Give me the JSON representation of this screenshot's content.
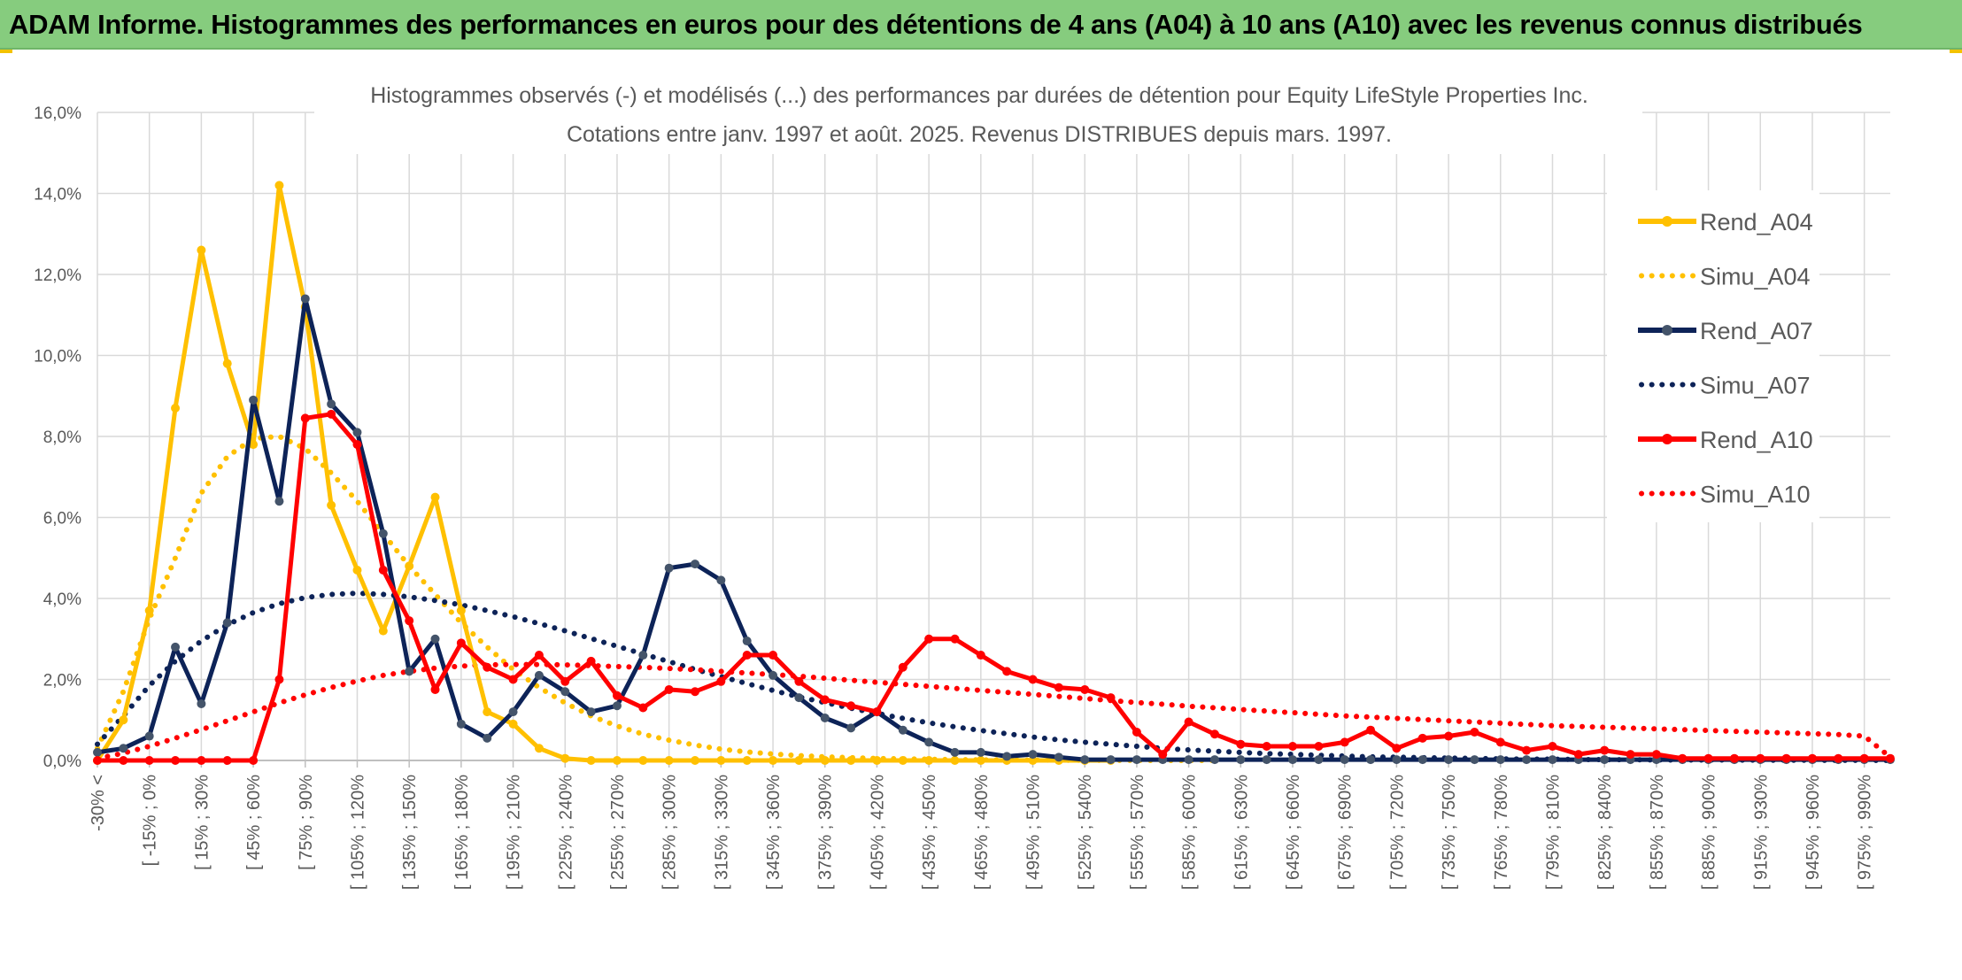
{
  "header": {
    "title": "ADAM Informe. Histogrammes des performances en euros pour des détentions de 4 ans (A04) à 10 ans (A10) avec les revenus connus distribués"
  },
  "colors": {
    "header_bg": "#86cc7e",
    "a04": "#ffc000",
    "a07": "#0d2358",
    "a10": "#ff0000",
    "grid": "#d9d9d9"
  },
  "chart_data": {
    "type": "line",
    "title": "Histogrammes observés (-) et modélisés (...) des performances par durées de détention pour Equity LifeStyle Properties Inc.",
    "subtitle": "Cotations entre janv. 1997 et août. 2025. Revenus DISTRIBUES depuis mars. 1997.",
    "ylim": [
      0,
      16
    ],
    "yticks": [
      "0,0%",
      "2,0%",
      "4,0%",
      "6,0%",
      "8,0%",
      "10,0%",
      "12,0%",
      "14,0%",
      "16,0%"
    ],
    "x_labels": [
      "-30% <",
      "[ -15% ; 0%",
      "[ 15% ; 30%",
      "[ 45% ; 60%",
      "[ 75% ; 90%",
      "[ 105% ; 120%",
      "[ 135% ; 150%",
      "[ 165% ; 180%",
      "[ 195% ; 210%",
      "[ 225% ; 240%",
      "[ 255% ; 270%",
      "[ 285% ; 300%",
      "[ 315% ; 330%",
      "[ 345% ; 360%",
      "[ 375% ; 390%",
      "[ 405% ; 420%",
      "[ 435% ; 450%",
      "[ 465% ; 480%",
      "[ 495% ; 510%",
      "[ 525% ; 540%",
      "[ 555% ; 570%",
      "[ 585% ; 600%",
      "[ 615% ; 630%",
      "[ 645% ; 660%",
      "[ 675% ; 690%",
      "[ 705% ; 720%",
      "[ 735% ; 750%",
      "[ 765% ; 780%",
      "[ 795% ; 810%",
      "[ 825% ; 840%",
      "[ 855% ; 870%",
      "[ 885% ; 900%",
      "[ 915% ; 930%",
      "[ 945% ; 960%",
      "[ 975% ; 990%"
    ],
    "n_points": 70,
    "legend_position": "right",
    "series": [
      {
        "name": "Rend_A04",
        "style": "solid",
        "color": "#ffc000",
        "values": [
          0,
          1.0,
          3.7,
          8.7,
          12.6,
          9.8,
          7.8,
          14.2,
          11.2,
          6.3,
          4.7,
          3.2,
          4.8,
          6.5,
          3.7,
          1.2,
          0.9,
          0.3,
          0.05,
          0,
          0,
          0,
          0,
          0,
          0,
          0,
          0,
          0,
          0,
          0,
          0,
          0,
          0,
          0,
          0,
          0,
          0,
          0,
          0,
          0
        ]
      },
      {
        "name": "Simu_A04",
        "style": "dotted",
        "color": "#ffc000",
        "values": [
          0.3,
          1.7,
          3.5,
          5.0,
          6.6,
          7.5,
          7.95,
          8.0,
          7.7,
          7.1,
          6.4,
          5.6,
          4.8,
          4.1,
          3.4,
          2.8,
          2.25,
          1.8,
          1.42,
          1.1,
          0.85,
          0.65,
          0.5,
          0.38,
          0.28,
          0.21,
          0.16,
          0.12,
          0.09,
          0.07,
          0.05,
          0.04,
          0.03,
          0.02,
          0.015,
          0.01,
          0.008,
          0.006,
          0.004,
          0.003,
          0.002,
          0.001,
          0,
          0
        ]
      },
      {
        "name": "Rend_A07",
        "style": "solid",
        "color": "#0d2358",
        "values": [
          0.2,
          0.3,
          0.6,
          2.8,
          1.4,
          3.4,
          8.9,
          6.4,
          11.4,
          8.8,
          8.1,
          5.6,
          2.2,
          3.0,
          0.9,
          0.55,
          1.2,
          2.1,
          1.7,
          1.2,
          1.35,
          2.6,
          4.75,
          4.85,
          4.45,
          2.95,
          2.1,
          1.55,
          1.05,
          0.8,
          1.2,
          0.75,
          0.45,
          0.2,
          0.2,
          0.1,
          0.15,
          0.08,
          0.02,
          0.02,
          0.02,
          0.02,
          0.02,
          0.02,
          0.02,
          0.02,
          0.02,
          0.02,
          0.02,
          0.02,
          0.02,
          0.02,
          0.02,
          0.02,
          0.02,
          0.02,
          0.02,
          0.02,
          0.02,
          0.02,
          0.02,
          0.02,
          0.02,
          0.02,
          0.02,
          0.02,
          0.02,
          0.02,
          0.02,
          0.02
        ]
      },
      {
        "name": "Simu_A07",
        "style": "dotted",
        "color": "#0d2358",
        "values": [
          0.4,
          1.1,
          1.85,
          2.45,
          2.95,
          3.35,
          3.65,
          3.87,
          4.02,
          4.1,
          4.13,
          4.1,
          4.04,
          3.95,
          3.84,
          3.7,
          3.55,
          3.38,
          3.2,
          3.01,
          2.82,
          2.63,
          2.44,
          2.25,
          2.07,
          1.9,
          1.73,
          1.57,
          1.43,
          1.29,
          1.16,
          1.04,
          0.93,
          0.83,
          0.74,
          0.66,
          0.58,
          0.51,
          0.45,
          0.4,
          0.35,
          0.3,
          0.26,
          0.23,
          0.2,
          0.17,
          0.15,
          0.13,
          0.11,
          0.09,
          0.08,
          0.07,
          0.06,
          0.05,
          0.04,
          0.035,
          0.03,
          0.025,
          0.02,
          0.017,
          0.014,
          0.012,
          0.01,
          0.008,
          0.006,
          0.005,
          0.004,
          0.003,
          0.002,
          0.001
        ]
      },
      {
        "name": "Rend_A10",
        "style": "solid",
        "color": "#ff0000",
        "values": [
          0,
          0,
          0,
          0,
          0,
          0,
          0,
          2.0,
          8.45,
          8.55,
          7.8,
          4.7,
          3.45,
          1.75,
          2.9,
          2.3,
          2.0,
          2.6,
          1.95,
          2.45,
          1.6,
          1.3,
          1.75,
          1.7,
          1.95,
          2.6,
          2.6,
          1.95,
          1.5,
          1.35,
          1.2,
          2.3,
          3.0,
          3.0,
          2.6,
          2.2,
          2.0,
          1.8,
          1.75,
          1.55,
          0.7,
          0.15,
          0.95,
          0.65,
          0.4,
          0.35,
          0.35,
          0.35,
          0.45,
          0.75,
          0.3,
          0.55,
          0.6,
          0.7,
          0.45,
          0.25,
          0.35,
          0.15,
          0.25,
          0.15,
          0.15,
          0.05,
          0.05,
          0.05,
          0.05,
          0.05,
          0.05,
          0.05,
          0.05,
          0.05
        ]
      },
      {
        "name": "Simu_A10",
        "style": "dotted",
        "color": "#ff0000",
        "values": [
          0.05,
          0.18,
          0.35,
          0.55,
          0.76,
          0.98,
          1.2,
          1.42,
          1.62,
          1.8,
          1.96,
          2.1,
          2.2,
          2.28,
          2.33,
          2.36,
          2.37,
          2.37,
          2.36,
          2.34,
          2.32,
          2.3,
          2.27,
          2.24,
          2.2,
          2.16,
          2.12,
          2.08,
          2.03,
          1.98,
          1.93,
          1.88,
          1.83,
          1.78,
          1.73,
          1.68,
          1.63,
          1.58,
          1.53,
          1.48,
          1.43,
          1.39,
          1.34,
          1.3,
          1.26,
          1.22,
          1.18,
          1.14,
          1.1,
          1.07,
          1.04,
          1.01,
          0.98,
          0.95,
          0.92,
          0.89,
          0.86,
          0.84,
          0.82,
          0.8,
          0.78,
          0.76,
          0.74,
          0.72,
          0.7,
          0.68,
          0.66,
          0.64,
          0.6,
          0.08
        ]
      }
    ]
  }
}
